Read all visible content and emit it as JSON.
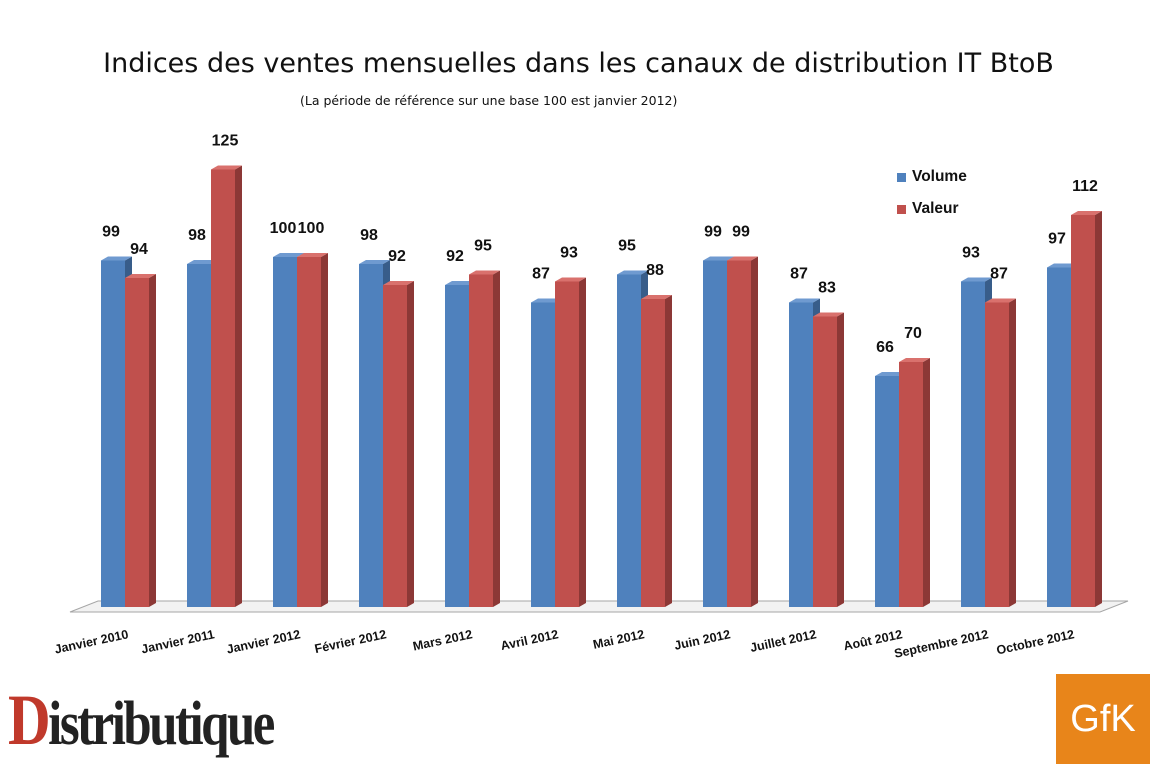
{
  "chart_data": {
    "type": "bar",
    "title": "Indices des ventes mensuelles dans les canaux de distribution IT BtoB",
    "subtitle": "(La période de référence sur une base 100 est janvier 2012)",
    "categories": [
      "Janvier 2010",
      "Janvier 2011",
      "Janvier 2012",
      "Février 2012",
      "Mars 2012",
      "Avril 2012",
      "Mai 2012",
      "Juin 2012",
      "Juillet 2012",
      "Août 2012",
      "Septembre 2012",
      "Octobre 2012"
    ],
    "series": [
      {
        "name": "Volume",
        "color": "#4f81bd",
        "values": [
          99,
          98,
          100,
          98,
          92,
          87,
          95,
          99,
          87,
          66,
          93,
          97
        ]
      },
      {
        "name": "Valeur",
        "color": "#c0504d",
        "values": [
          94,
          125,
          100,
          92,
          95,
          93,
          88,
          99,
          83,
          70,
          87,
          112
        ]
      }
    ],
    "xlabel": "",
    "ylabel": "",
    "ylim": [
      0,
      125
    ],
    "grid": false,
    "legend_position": "top-right",
    "style": "3d-clustered-columns"
  },
  "logos": {
    "left": "Distributique",
    "right": "GfK"
  }
}
